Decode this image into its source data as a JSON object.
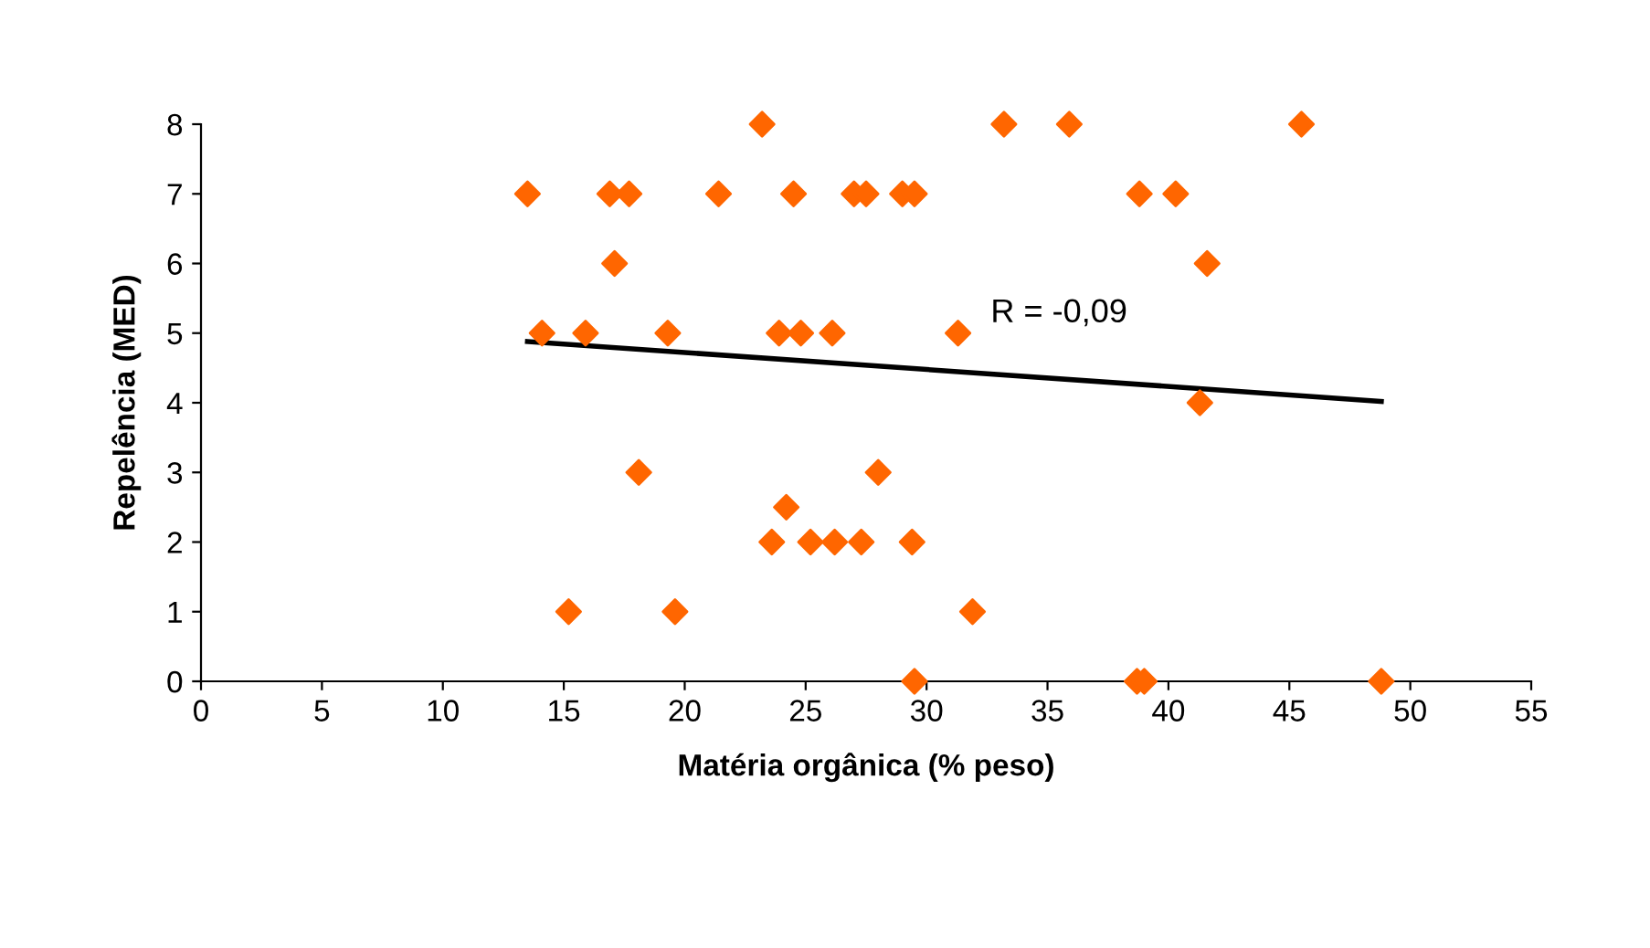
{
  "chart_data": {
    "type": "scatter",
    "xlabel": "Matéria orgânica (% peso)",
    "ylabel": "Repelência (MED)",
    "xlim": [
      0,
      55
    ],
    "ylim": [
      0,
      8
    ],
    "xticks": [
      0,
      5,
      10,
      15,
      20,
      25,
      30,
      35,
      40,
      45,
      50,
      55
    ],
    "yticks": [
      0,
      1,
      2,
      3,
      4,
      5,
      6,
      7,
      8
    ],
    "grid": false,
    "marker": "diamond",
    "series": [
      {
        "color": "#ff6600",
        "x": [
          13.5,
          14.1,
          15.2,
          15.9,
          16.9,
          17.1,
          17.7,
          18.1,
          19.3,
          19.6,
          21.4,
          23.2,
          23.6,
          23.9,
          24.2,
          24.5,
          24.8,
          25.2,
          26.1,
          26.2,
          27.0,
          27.3,
          27.5,
          28.0,
          29.0,
          29.4,
          29.5,
          29.5,
          31.3,
          31.9,
          33.2,
          35.9,
          38.8,
          38.7,
          39.0,
          40.3,
          41.3,
          41.6,
          45.5,
          48.8
        ],
        "values": [
          7,
          5,
          1,
          5,
          7,
          6,
          7,
          3,
          5,
          1,
          7,
          8,
          2,
          5,
          2.5,
          7,
          5,
          2,
          5,
          2,
          7,
          2,
          7,
          3,
          7,
          2,
          7,
          0,
          5,
          1,
          8,
          8,
          7,
          0,
          0,
          7,
          4,
          6,
          8,
          0
        ]
      },
      {
        "type": "line",
        "marker": "none",
        "color": "#000000",
        "x": [
          13.5,
          48.8
        ],
        "values": [
          4.88,
          4.02
        ]
      }
    ],
    "annotations": [
      "R = -0,09"
    ]
  }
}
